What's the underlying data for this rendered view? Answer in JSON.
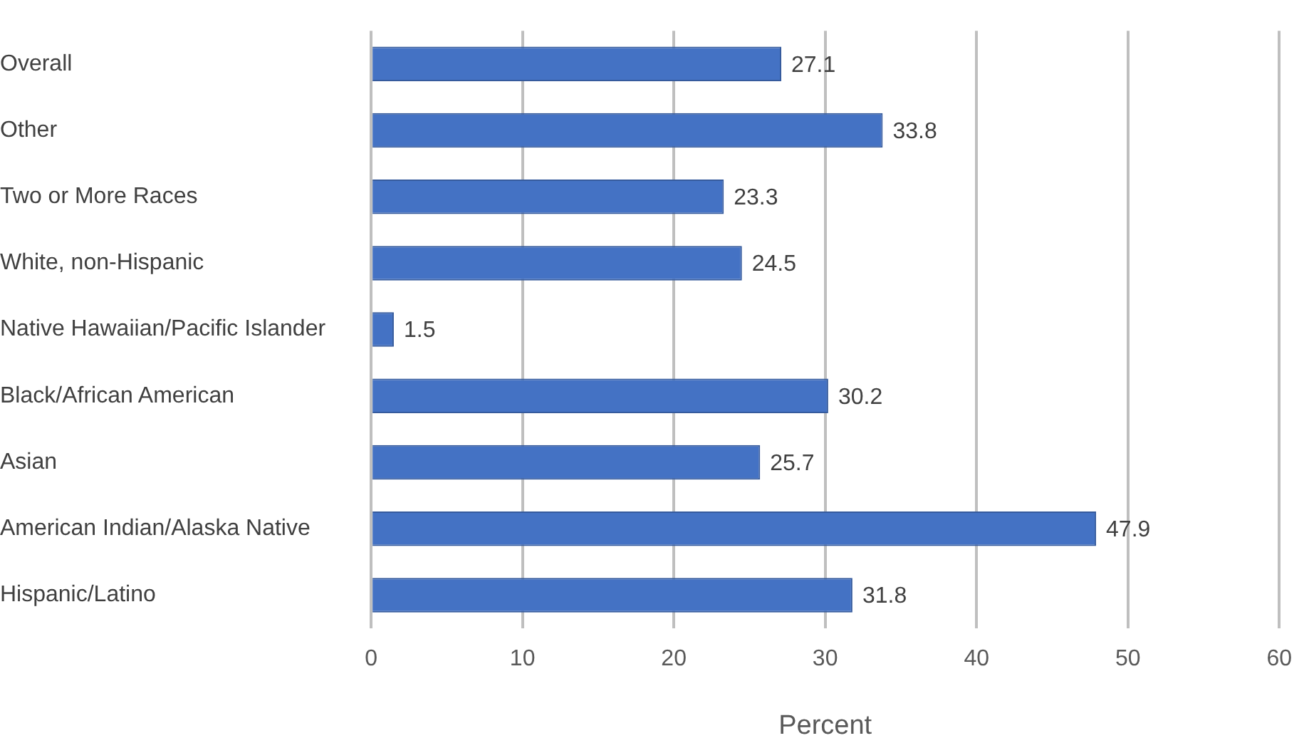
{
  "chart_data": {
    "type": "bar",
    "orientation": "horizontal",
    "xlabel": "Percent",
    "categories": [
      "Overall",
      "Other",
      "Two or More Races",
      "White, non-Hispanic",
      "Native Hawaiian/Pacific Islander",
      "Black/African American",
      "Asian",
      "American Indian/Alaska Native",
      "Hispanic/Latino"
    ],
    "values": [
      27.1,
      33.8,
      23.3,
      24.5,
      1.5,
      30.2,
      25.7,
      47.9,
      31.8
    ],
    "color": "#4472c4",
    "xlim": [
      0,
      60
    ],
    "xticks": [
      0,
      10,
      20,
      30,
      40,
      50,
      60
    ],
    "grid": "x",
    "legend": false,
    "data_labels": true
  }
}
